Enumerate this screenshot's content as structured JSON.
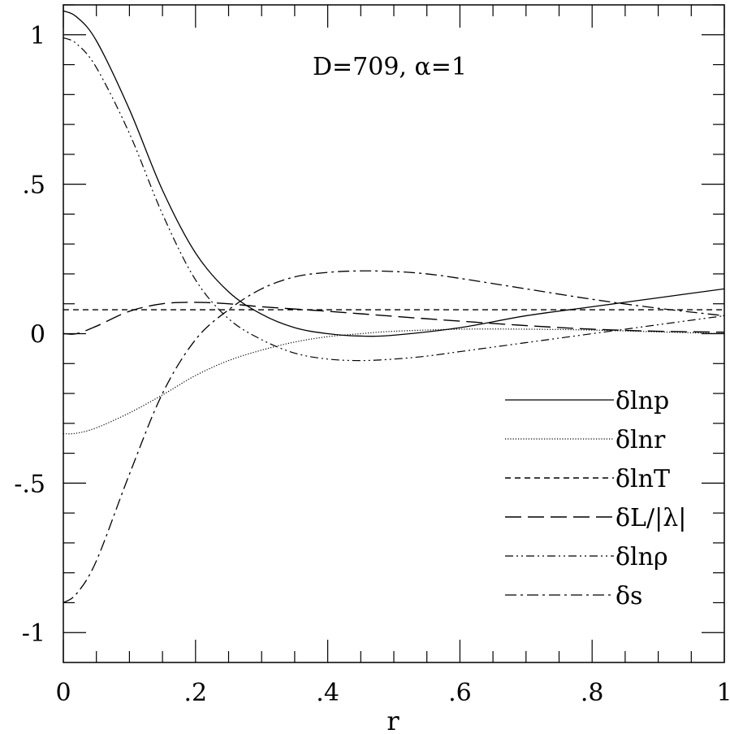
{
  "chart_data": {
    "type": "line",
    "title": "",
    "annotation": "D=709,  α=1",
    "xlabel": "r",
    "ylabel": "",
    "xlim": [
      0,
      1
    ],
    "ylim": [
      -1.1,
      1.1
    ],
    "x_ticks": [
      {
        "value": 0,
        "label": "0"
      },
      {
        "value": 0.2,
        "label": ".2"
      },
      {
        "value": 0.4,
        "label": ".4"
      },
      {
        "value": 0.6,
        "label": ".6"
      },
      {
        "value": 0.8,
        "label": ".8"
      },
      {
        "value": 1,
        "label": "1"
      }
    ],
    "y_ticks": [
      {
        "value": -1,
        "label": "-1"
      },
      {
        "value": -0.5,
        "label": "-.5"
      },
      {
        "value": 0,
        "label": "0"
      },
      {
        "value": 0.5,
        "label": ".5"
      },
      {
        "value": 1,
        "label": "1"
      }
    ],
    "legend_position": "lower-right",
    "series": [
      {
        "name": "δlnp",
        "style": "solid",
        "x": [
          0,
          0.02,
          0.05,
          0.1,
          0.15,
          0.2,
          0.25,
          0.3,
          0.35,
          0.4,
          0.45,
          0.5,
          0.6,
          0.7,
          0.8,
          0.9,
          1.0
        ],
        "y": [
          1.08,
          1.06,
          0.98,
          0.75,
          0.48,
          0.27,
          0.14,
          0.065,
          0.02,
          0.0,
          -0.008,
          -0.005,
          0.02,
          0.06,
          0.09,
          0.12,
          0.15
        ]
      },
      {
        "name": "δlnr",
        "style": "dotted",
        "x": [
          0,
          0.02,
          0.05,
          0.1,
          0.15,
          0.2,
          0.25,
          0.3,
          0.35,
          0.4,
          0.45,
          0.5,
          0.6,
          0.7,
          0.8,
          0.9,
          1.0
        ],
        "y": [
          -0.335,
          -0.333,
          -0.315,
          -0.265,
          -0.205,
          -0.14,
          -0.09,
          -0.055,
          -0.028,
          -0.01,
          0.0,
          0.008,
          0.015,
          0.015,
          0.012,
          0.006,
          0.0
        ]
      },
      {
        "name": "δlnT",
        "style": "short-dash",
        "x": [
          0,
          0.2,
          0.4,
          0.6,
          0.8,
          1.0
        ],
        "y": [
          0.08,
          0.08,
          0.08,
          0.08,
          0.08,
          0.08
        ]
      },
      {
        "name": "δL/|λ|",
        "style": "long-dash",
        "x": [
          0,
          0.02,
          0.05,
          0.1,
          0.15,
          0.2,
          0.25,
          0.3,
          0.4,
          0.5,
          0.6,
          0.7,
          0.8,
          0.9,
          1.0
        ],
        "y": [
          0.0,
          0.0,
          0.025,
          0.075,
          0.1,
          0.105,
          0.1,
          0.09,
          0.075,
          0.058,
          0.042,
          0.027,
          0.015,
          0.008,
          0.005
        ]
      },
      {
        "name": "δlnρ",
        "style": "dash-dot-dot",
        "x": [
          0,
          0.02,
          0.05,
          0.1,
          0.15,
          0.2,
          0.25,
          0.3,
          0.35,
          0.4,
          0.45,
          0.5,
          0.55,
          0.6,
          0.7,
          0.8,
          0.9,
          1.0
        ],
        "y": [
          0.99,
          0.97,
          0.89,
          0.67,
          0.4,
          0.18,
          0.05,
          -0.02,
          -0.065,
          -0.085,
          -0.09,
          -0.085,
          -0.075,
          -0.06,
          -0.03,
          0.0,
          0.03,
          0.06
        ]
      },
      {
        "name": "δs",
        "style": "dash-dot",
        "x": [
          0,
          0.02,
          0.05,
          0.1,
          0.15,
          0.2,
          0.25,
          0.3,
          0.35,
          0.4,
          0.45,
          0.5,
          0.55,
          0.6,
          0.7,
          0.8,
          0.9,
          1.0
        ],
        "y": [
          -0.9,
          -0.87,
          -0.76,
          -0.47,
          -0.2,
          -0.02,
          0.08,
          0.15,
          0.19,
          0.205,
          0.21,
          0.208,
          0.2,
          0.185,
          0.15,
          0.115,
          0.085,
          0.06
        ]
      }
    ]
  }
}
